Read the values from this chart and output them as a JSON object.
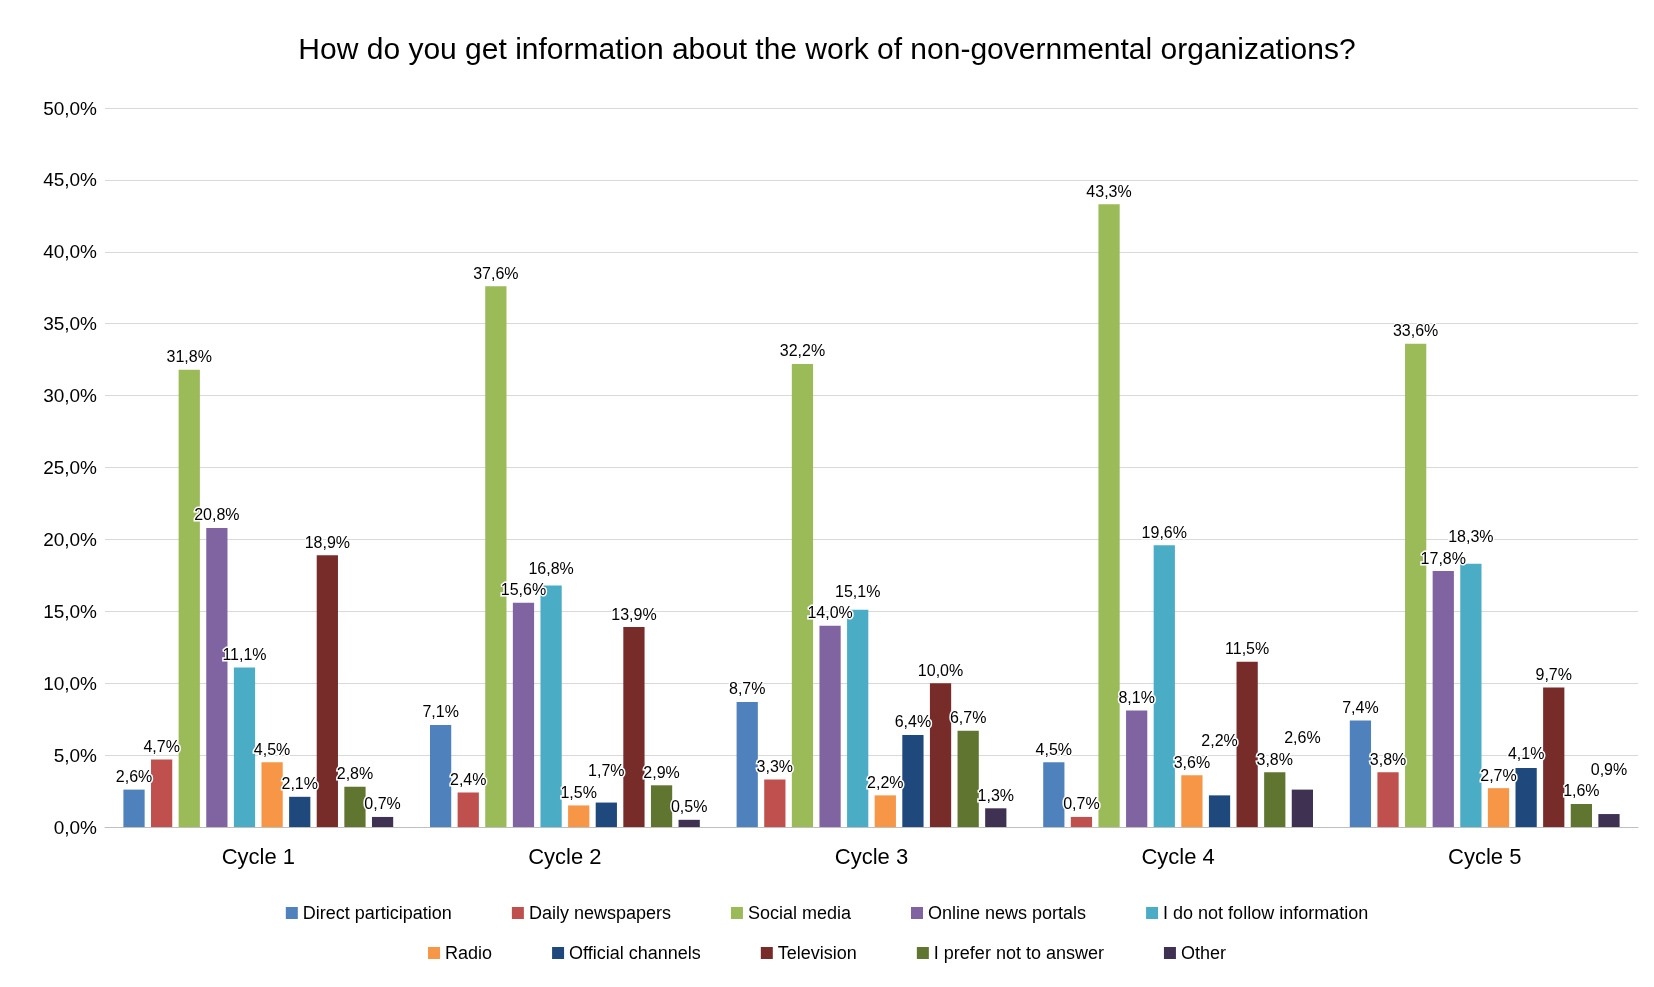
{
  "chart_data": {
    "type": "bar",
    "title": "How do you get information about the work of non-governmental organizations?",
    "categories": [
      "Cycle 1",
      "Cycle 2",
      "Cycle 3",
      "Cycle 4",
      "Cycle 5"
    ],
    "series": [
      {
        "name": "Direct participation",
        "color": "#4f81bd",
        "values": [
          2.6,
          7.1,
          8.7,
          4.5,
          7.4
        ],
        "value_labels": [
          "2,6%",
          "7,1%",
          "8,7%",
          "4,5%",
          "7,4%"
        ]
      },
      {
        "name": "Daily newspapers",
        "color": "#c0504d",
        "values": [
          4.7,
          2.4,
          3.3,
          0.7,
          3.8
        ],
        "value_labels": [
          "4,7%",
          "2,4%",
          "3,3%",
          "0,7%",
          "3,8%"
        ]
      },
      {
        "name": "Social media",
        "color": "#9bbb59",
        "values": [
          31.8,
          37.6,
          32.2,
          43.3,
          33.6
        ],
        "value_labels": [
          "31,8%",
          "37,6%",
          "32,2%",
          "43,3%",
          "33,6%"
        ]
      },
      {
        "name": "Online news portals",
        "color": "#8064a2",
        "values": [
          20.8,
          15.6,
          14.0,
          8.1,
          17.8
        ],
        "value_labels": [
          "20,8%",
          "15,6%",
          "14,0%",
          "8,1%",
          "17,8%"
        ]
      },
      {
        "name": "I do not follow information",
        "color": "#4bacc6",
        "values": [
          11.1,
          16.8,
          15.1,
          19.6,
          18.3
        ],
        "value_labels": [
          "11,1%",
          "16,8%",
          "15,1%",
          "19,6%",
          "18,3%"
        ]
      },
      {
        "name": "Radio",
        "color": "#f79646",
        "values": [
          4.5,
          1.5,
          2.2,
          3.6,
          2.7
        ],
        "value_labels": [
          "4,5%",
          "1,5%",
          "2,2%",
          "3,6%",
          "2,7%"
        ]
      },
      {
        "name": "Official channels",
        "color": "#1f497d",
        "values": [
          2.1,
          1.7,
          6.4,
          2.2,
          4.1
        ],
        "value_labels": [
          "2,1%",
          "1,7%",
          "6,4%",
          "2,2%",
          "4,1%"
        ]
      },
      {
        "name": "Television",
        "color": "#772c2a",
        "values": [
          18.9,
          13.9,
          10.0,
          11.5,
          9.7
        ],
        "value_labels": [
          "18,9%",
          "13,9%",
          "10,0%",
          "11,5%",
          "9,7%"
        ]
      },
      {
        "name": "I prefer not to answer",
        "color": "#5f7530",
        "values": [
          2.8,
          2.9,
          6.7,
          3.8,
          1.6
        ],
        "value_labels": [
          "2,8%",
          "2,9%",
          "6,7%",
          "3,8%",
          "1,6%"
        ]
      },
      {
        "name": "Other",
        "color": "#3f3151",
        "values": [
          0.7,
          0.5,
          1.3,
          2.6,
          0.9
        ],
        "value_labels": [
          "0,7%",
          "0,5%",
          "1,3%",
          "2,6%",
          "0,9%"
        ]
      }
    ],
    "ylim": [
      0,
      50
    ],
    "yticks": [
      {
        "value": 0,
        "label": "0,0%"
      },
      {
        "value": 5,
        "label": "5,0%"
      },
      {
        "value": 10,
        "label": "10,0%"
      },
      {
        "value": 15,
        "label": "15,0%"
      },
      {
        "value": 20,
        "label": "20,0%"
      },
      {
        "value": 25,
        "label": "25,0%"
      },
      {
        "value": 30,
        "label": "30,0%"
      },
      {
        "value": 35,
        "label": "35,0%"
      },
      {
        "value": 40,
        "label": "40,0%"
      },
      {
        "value": 45,
        "label": "45,0%"
      },
      {
        "value": 50,
        "label": "50,0%"
      }
    ],
    "grid": "y",
    "legend": "bottom"
  }
}
